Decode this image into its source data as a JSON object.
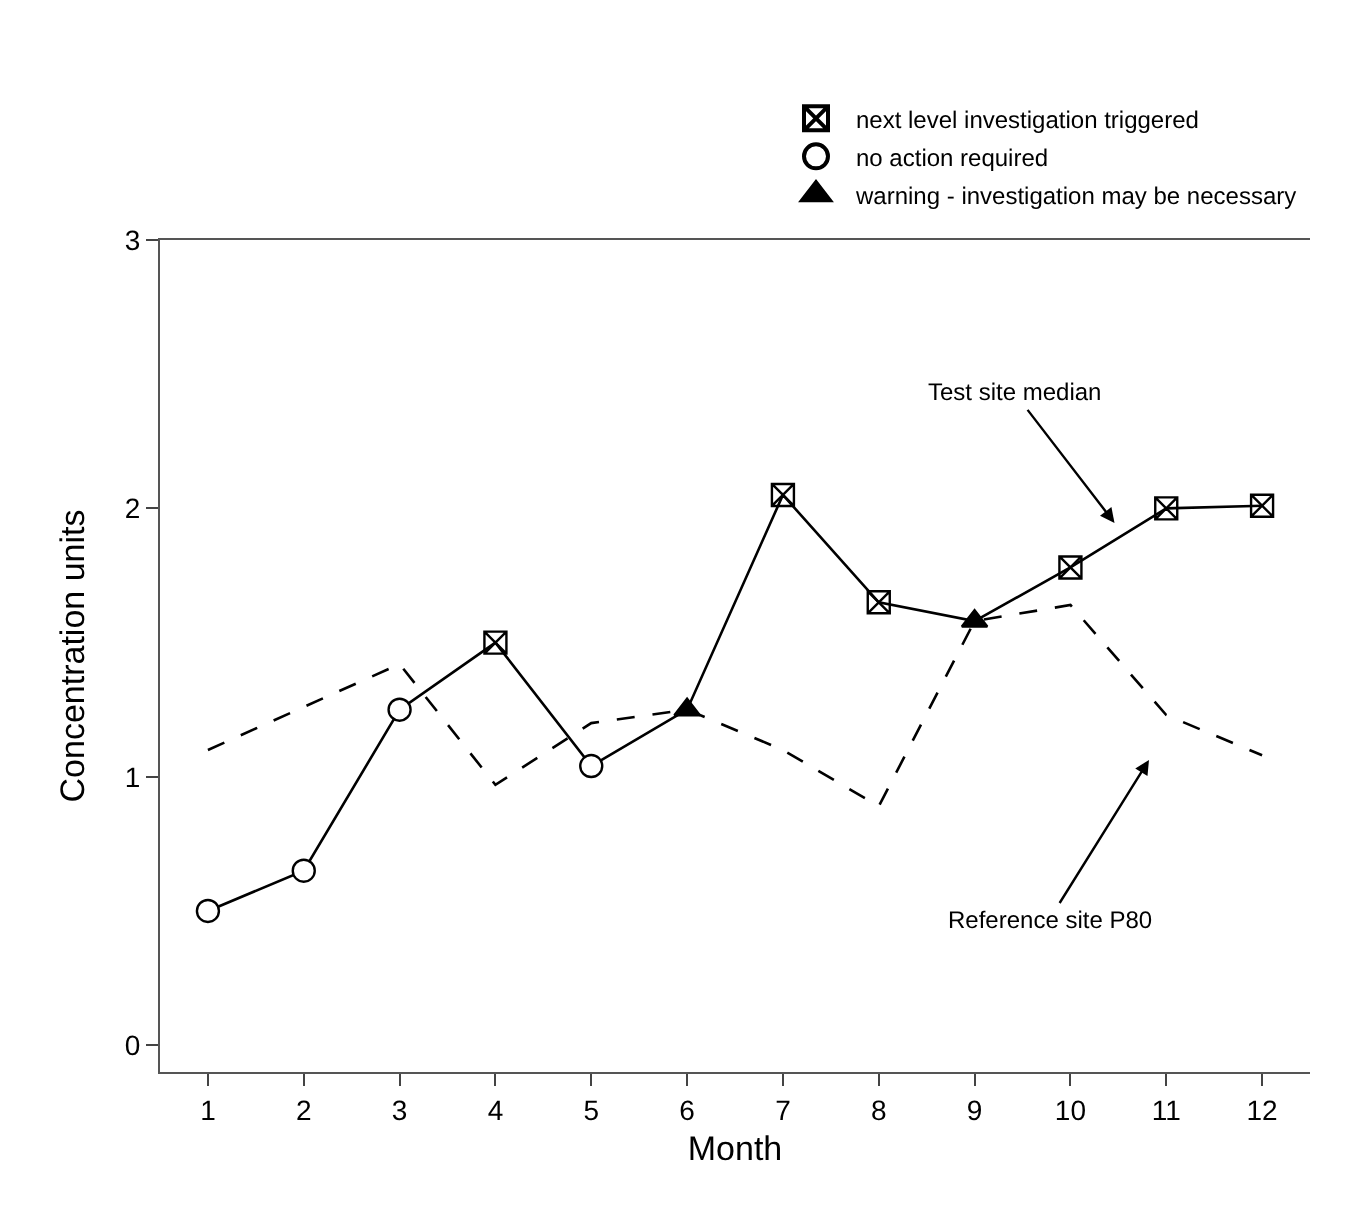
{
  "chart_data": {
    "type": "line",
    "x": [
      1,
      2,
      3,
      4,
      5,
      6,
      7,
      8,
      9,
      10,
      11,
      12
    ],
    "xlabel": "Month",
    "ylabel": "Concentration units",
    "xlim": [
      0.5,
      12.5
    ],
    "xticks": [
      1,
      2,
      3,
      4,
      5,
      6,
      7,
      8,
      9,
      10,
      11,
      12
    ],
    "ylim": [
      -0.1,
      3
    ],
    "yticks": [
      0,
      1,
      2,
      3
    ],
    "legend": "top right",
    "series": [
      {
        "color": "#000000",
        "line_style": "solid",
        "marker": "none",
        "values": [
          0.5,
          0.65,
          1.25,
          1.5,
          1.04,
          1.25,
          2.05,
          1.65,
          1.58,
          1.78,
          2.0,
          2.01
        ]
      },
      {
        "color": "#000000",
        "line_style": "dashed",
        "marker": "none",
        "values": [
          1.1,
          1.26,
          1.42,
          0.97,
          1.2,
          1.25,
          1.1,
          0.89,
          1.58,
          1.64,
          1.23,
          1.08
        ]
      },
      {
        "type": "scatter",
        "name": "next level investigation triggered",
        "color": "#000000",
        "marker": "cross",
        "values": [
          null,
          null,
          null,
          1.5,
          null,
          null,
          2.05,
          1.65,
          null,
          1.78,
          2.0,
          2.01
        ]
      },
      {
        "type": "scatter",
        "name": "no action required",
        "color": "#000000",
        "marker": "circle",
        "values": [
          0.5,
          0.65,
          1.25,
          null,
          1.04,
          null,
          null,
          null,
          null,
          null,
          null,
          null
        ]
      },
      {
        "type": "scatter",
        "name": "warning - investigation may be necessary",
        "color": "#000000",
        "marker": "triangle",
        "values": [
          null,
          null,
          null,
          null,
          null,
          1.25,
          null,
          null,
          1.58,
          null,
          null,
          null
        ]
      }
    ],
    "annotations": [
      "Test site median",
      "Reference site P80"
    ]
  }
}
